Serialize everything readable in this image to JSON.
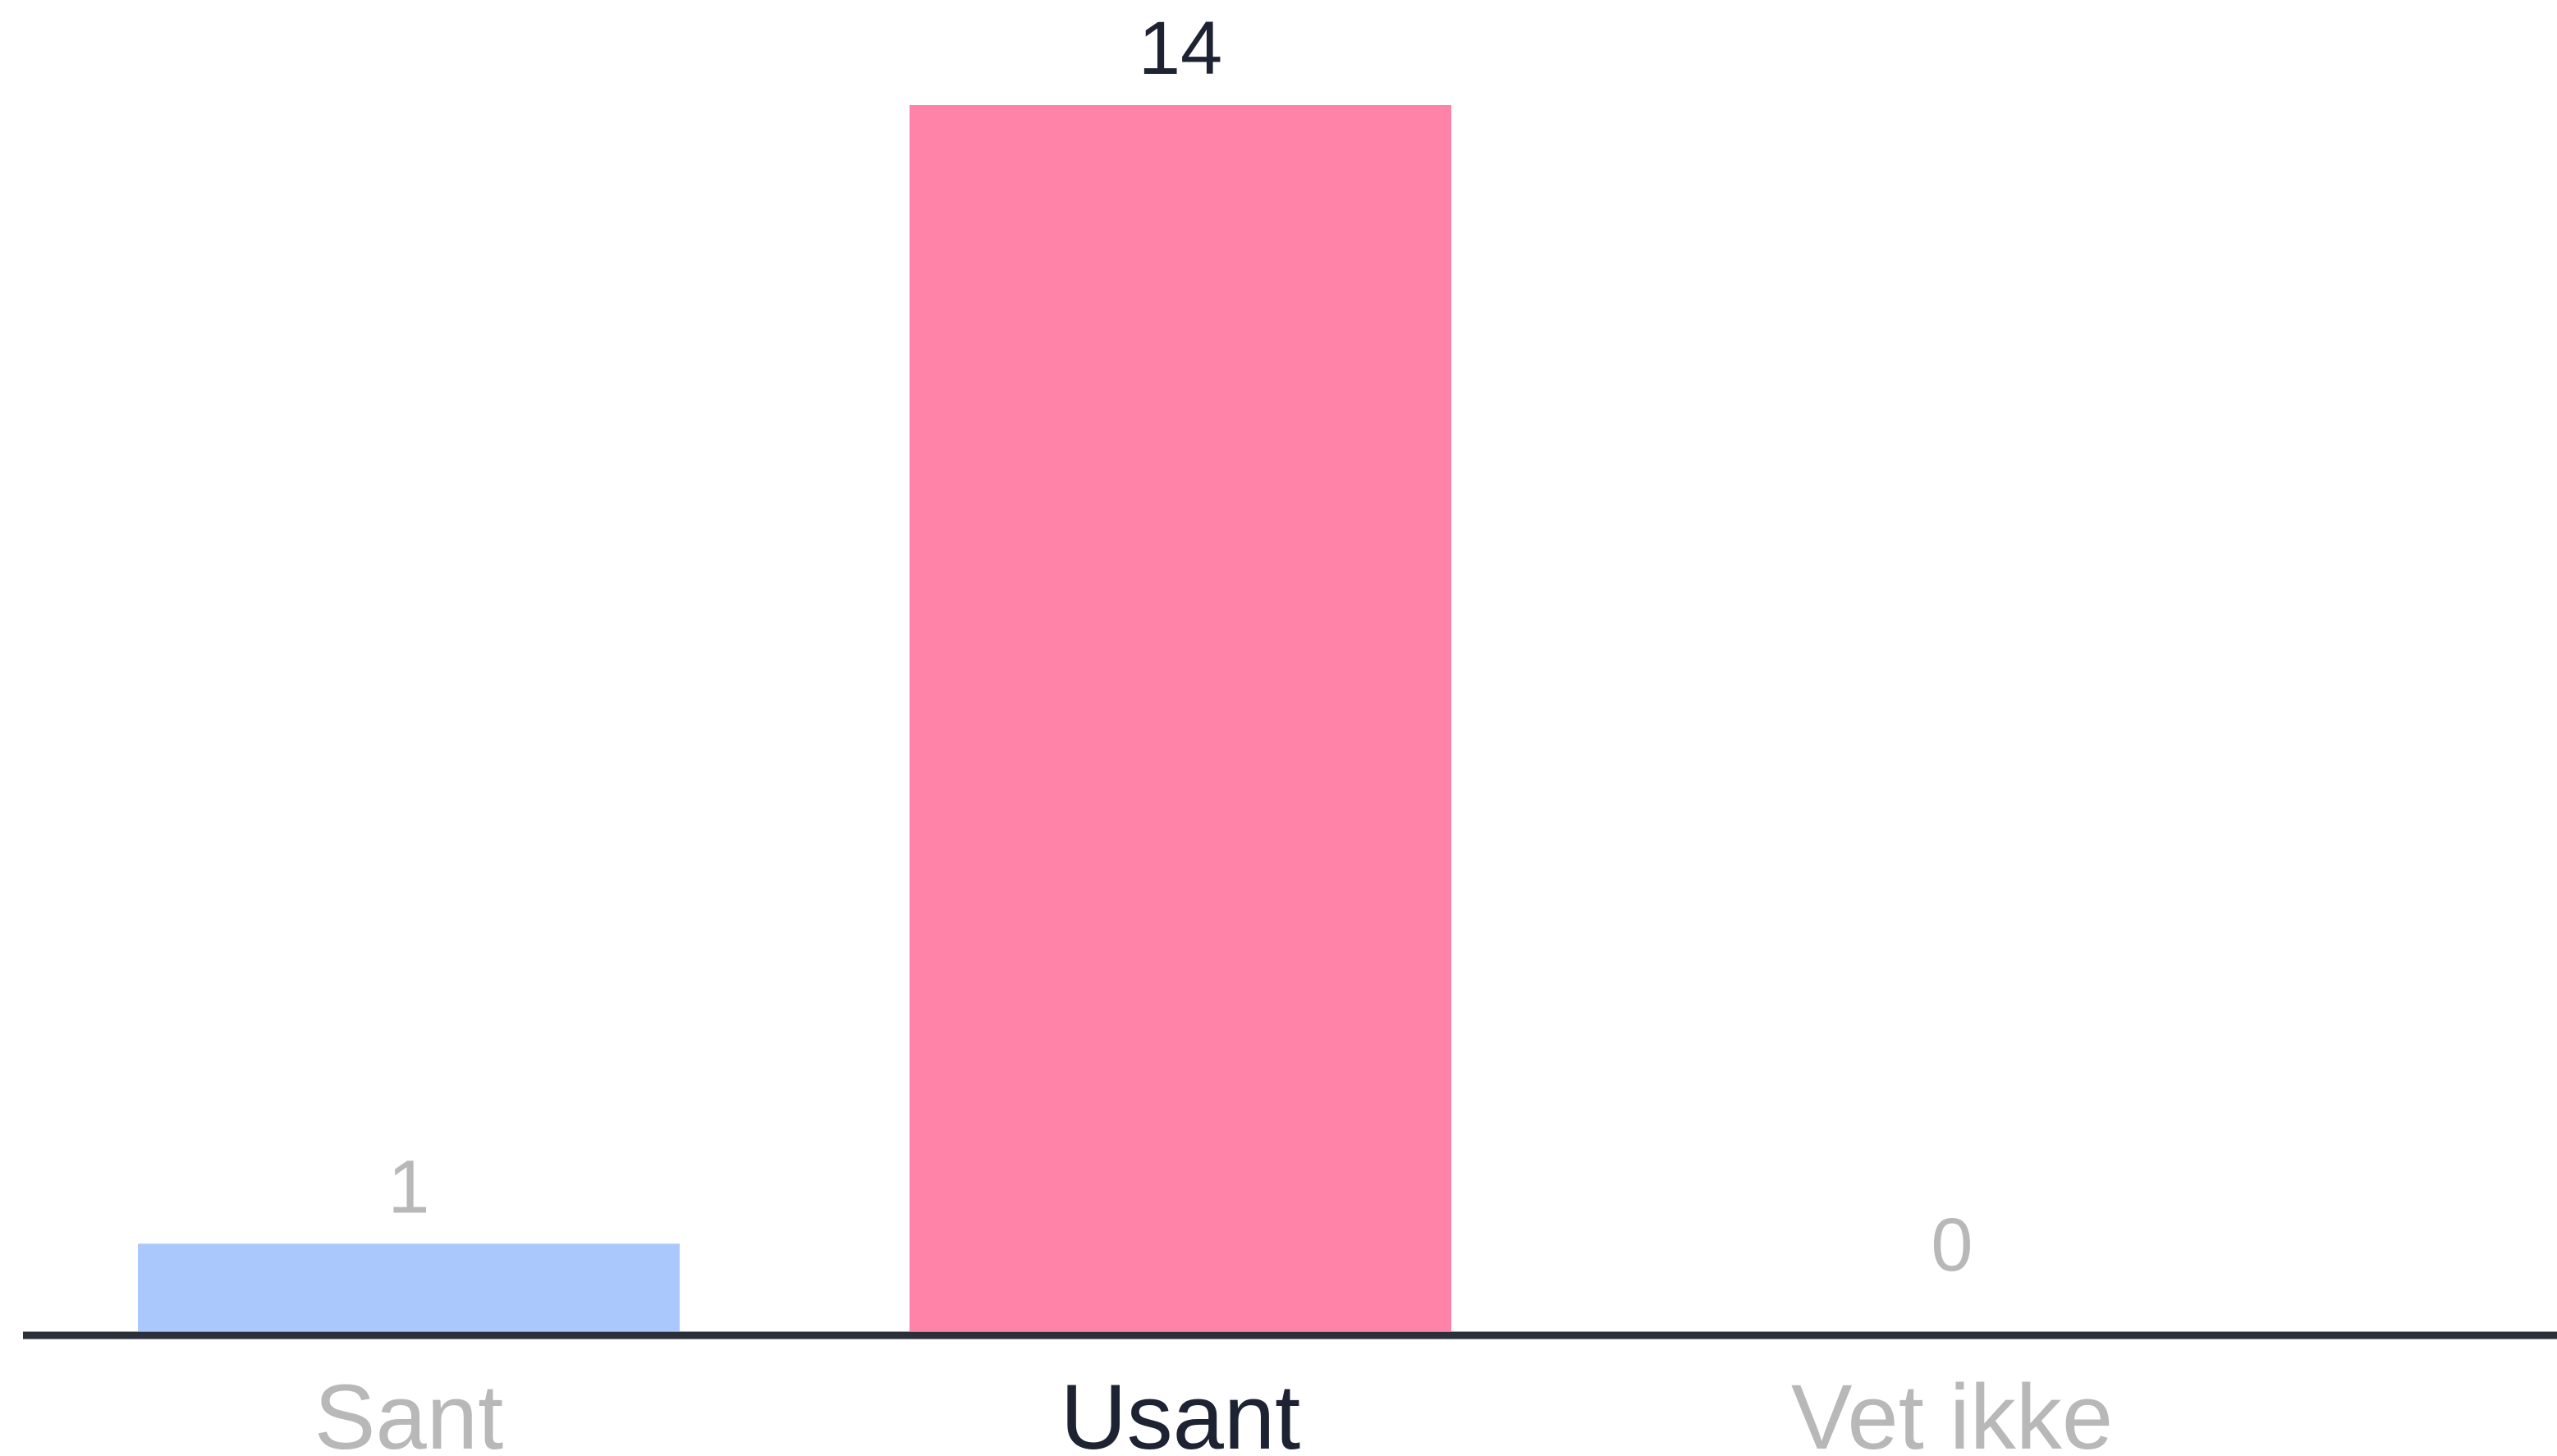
{
  "chart_data": {
    "type": "bar",
    "title": "",
    "xlabel": "",
    "ylabel": "",
    "categories": [
      "Sant",
      "Usant",
      "Vet ikke"
    ],
    "values": [
      1,
      14,
      0
    ],
    "value_labels": [
      "1",
      "14",
      "0"
    ],
    "ylim": [
      0,
      14
    ],
    "grid": false,
    "legend": "none",
    "highlighted_category": "Usant",
    "colors": {
      "bars": [
        "#abc8fc",
        "#ff82a9",
        "#d5d5d5"
      ],
      "highlight_text": "#1e2333",
      "muted_text": "#b8b8b8",
      "axis": "#2b2f3a",
      "background": "#ffffff"
    }
  }
}
